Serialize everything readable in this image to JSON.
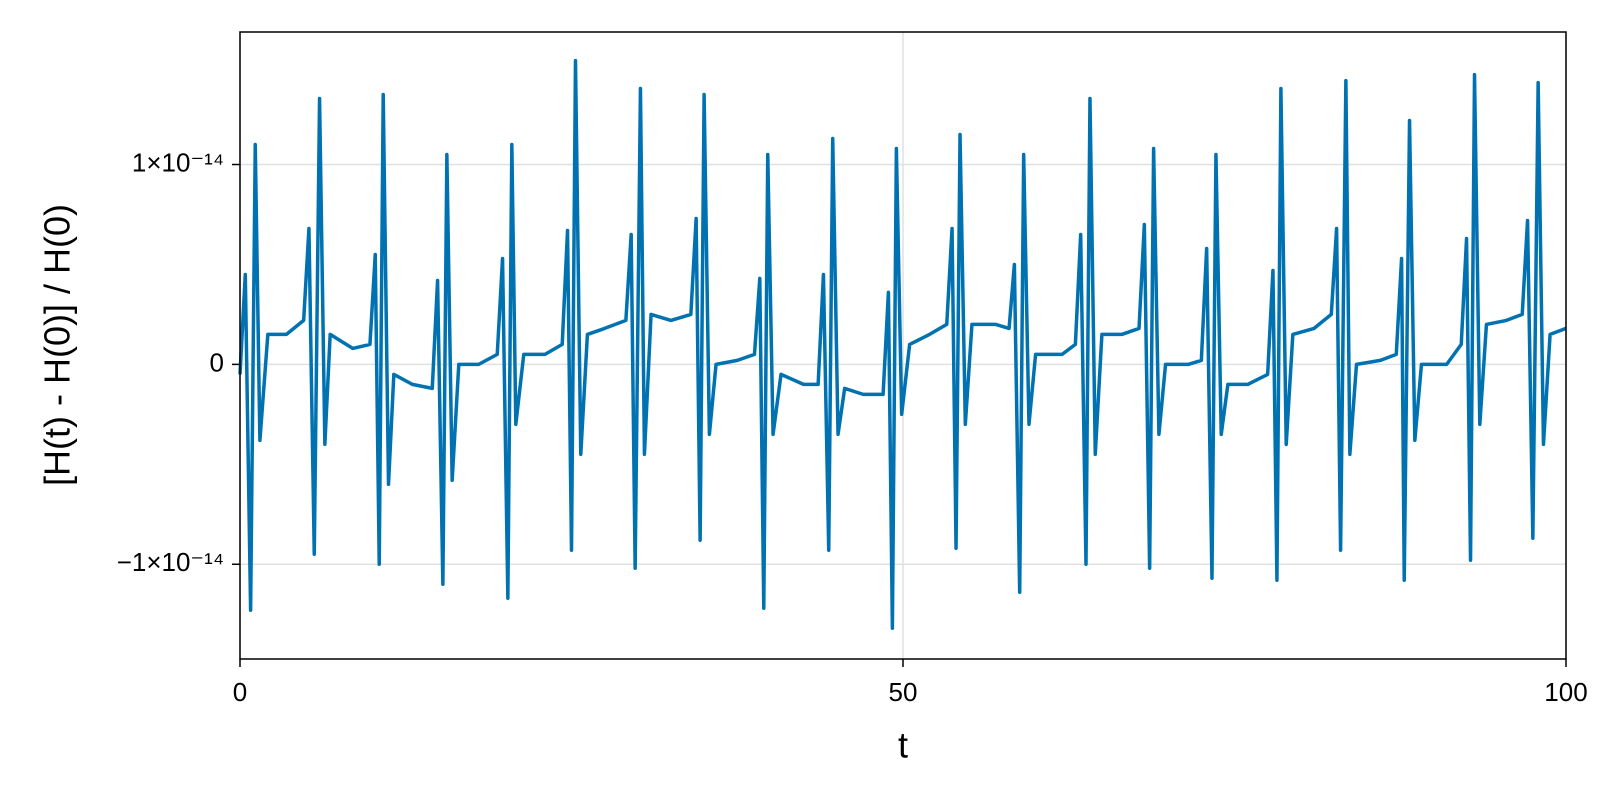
{
  "chart_data": {
    "type": "line",
    "x_label": "t",
    "y_label": "[H(t) - H(0)] / H(0)",
    "xlim": [
      0,
      100
    ],
    "xticks": [
      0,
      50,
      100
    ],
    "ylim": [
      -1.474e-14,
      1.663e-14
    ],
    "yticks": [
      {
        "value": -1e-14,
        "label": "−1×10⁻¹⁴"
      },
      0,
      {
        "value": 1e-14,
        "label": "1×10⁻¹⁴"
      }
    ],
    "grid": true,
    "series": [
      {
        "color": "#0072b2",
        "x": [
          0,
          0.4,
          0.8,
          1.15,
          1.5,
          2.1,
          3.5,
          4.8,
          5.2,
          5.6,
          6.0,
          6.4,
          6.8,
          8.5,
          9.8,
          10.2,
          10.5,
          10.8,
          11.2,
          11.6,
          13,
          14.5,
          14.9,
          15.3,
          15.6,
          16.0,
          16.5,
          18,
          19.4,
          19.8,
          20.2,
          20.5,
          20.8,
          21.4,
          23,
          24.3,
          24.7,
          25.0,
          25.3,
          25.7,
          26.2,
          27.5,
          29.1,
          29.5,
          29.8,
          30.2,
          30.5,
          31.0,
          32.5,
          34.0,
          34.4,
          34.7,
          35.0,
          35.4,
          35.9,
          37.5,
          38.8,
          39.2,
          39.5,
          39.8,
          40.2,
          40.8,
          42.5,
          43.6,
          44.0,
          44.4,
          44.7,
          45.1,
          45.6,
          47,
          48.5,
          48.9,
          49.2,
          49.5,
          49.9,
          50.5,
          52,
          53.3,
          53.7,
          54.0,
          54.3,
          54.7,
          55.2,
          57,
          58.0,
          58.4,
          58.8,
          59.1,
          59.5,
          60.0,
          62,
          63.0,
          63.4,
          63.8,
          64.1,
          64.5,
          65.0,
          66.5,
          67.8,
          68.2,
          68.6,
          68.9,
          69.3,
          69.8,
          71.5,
          72.5,
          72.9,
          73.3,
          73.6,
          74.0,
          74.5,
          76,
          77.5,
          77.9,
          78.2,
          78.5,
          78.9,
          79.4,
          81,
          82.3,
          82.7,
          83.0,
          83.4,
          83.7,
          84.2,
          86,
          87.2,
          87.6,
          87.8,
          88.2,
          88.6,
          89.1,
          91,
          92.1,
          92.5,
          92.8,
          93.1,
          93.5,
          94.0,
          95.5,
          96.7,
          97.1,
          97.5,
          97.9,
          98.3,
          98.8,
          100
        ],
        "values": [
          -5e-16,
          4.5e-15,
          -1.23e-14,
          1.1e-14,
          -3.8e-15,
          1.5e-15,
          1.5e-15,
          2.2e-15,
          6.8e-15,
          -9.5e-15,
          1.33e-14,
          -4e-15,
          1.5e-15,
          8e-16,
          1e-15,
          5.5e-15,
          -1e-14,
          1.35e-14,
          -6e-15,
          -5e-16,
          -1e-15,
          -1.2e-15,
          4.2e-15,
          -1.1e-14,
          1.05e-14,
          -5.8e-15,
          0,
          0,
          5e-16,
          5.3e-15,
          -1.17e-14,
          1.1e-14,
          -3e-15,
          5e-16,
          5e-16,
          1e-15,
          6.7e-15,
          -9.3e-15,
          1.52e-14,
          -4.5e-15,
          1.5e-15,
          1.8e-15,
          2.2e-15,
          6.5e-15,
          -1.02e-14,
          1.38e-14,
          -4.5e-15,
          2.5e-15,
          2.2e-15,
          2.5e-15,
          7.3e-15,
          -8.8e-15,
          1.35e-14,
          -3.5e-15,
          0,
          2e-16,
          5e-16,
          4.3e-15,
          -1.22e-14,
          1.05e-14,
          -3.5e-15,
          -5e-16,
          -1e-15,
          -1e-15,
          4.5e-15,
          -9.3e-15,
          1.13e-14,
          -3.5e-15,
          -1.2e-15,
          -1.5e-15,
          -1.5e-15,
          3.6e-15,
          -1.32e-14,
          1.08e-14,
          -2.5e-15,
          1e-15,
          1.5e-15,
          2e-15,
          6.8e-15,
          -9.2e-15,
          1.15e-14,
          -3e-15,
          2e-15,
          2e-15,
          1.8e-15,
          5e-15,
          -1.14e-14,
          1.05e-14,
          -3e-15,
          5e-16,
          5e-16,
          1e-15,
          6.5e-15,
          -1e-14,
          1.33e-14,
          -4.5e-15,
          1.5e-15,
          1.5e-15,
          1.8e-15,
          7e-15,
          -1.02e-14,
          1.08e-14,
          -3.5e-15,
          0,
          0,
          2e-16,
          5.8e-15,
          -1.07e-14,
          1.05e-14,
          -3.5e-15,
          -1e-15,
          -1e-15,
          -5e-16,
          4.7e-15,
          -1.08e-14,
          1.38e-14,
          -4e-15,
          1.5e-15,
          1.8e-15,
          2.5e-15,
          6.8e-15,
          -9.3e-15,
          1.42e-14,
          -4.5e-15,
          0,
          2e-16,
          5e-16,
          5.3e-15,
          -1.08e-14,
          1.22e-14,
          -3.8e-15,
          0,
          0,
          1e-15,
          6.3e-15,
          -9.8e-15,
          1.45e-14,
          -3e-15,
          2e-15,
          2.2e-15,
          2.5e-15,
          7.2e-15,
          -8.7e-15,
          1.41e-14,
          -4e-15,
          1.5e-15,
          1.8e-15
        ]
      }
    ]
  }
}
